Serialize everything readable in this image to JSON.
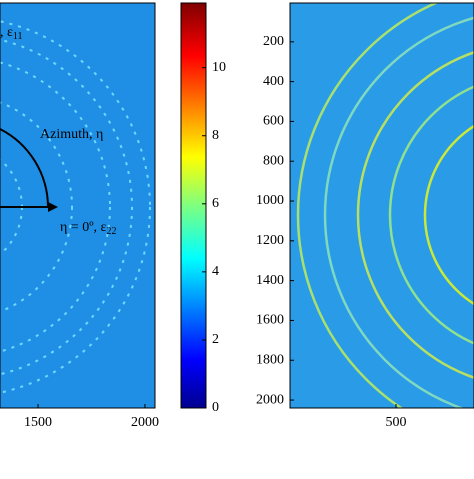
{
  "chart_data": [
    {
      "type": "image",
      "xlim": [
        1322,
        2047
      ],
      "xticks": [
        1500,
        2000
      ],
      "annotations": [
        {
          "text": "Azimuth, η"
        },
        {
          "text": "η = 0º, ε",
          "sub": "22"
        },
        {
          "text": ", ε",
          "sub": "11"
        }
      ]
    },
    {
      "type": "colorbar",
      "ylim": [
        0,
        11.9
      ],
      "yticks": [
        0,
        2,
        4,
        6,
        8,
        10
      ]
    },
    {
      "type": "image",
      "xlim": [
        0,
        868
      ],
      "xticks": [
        500
      ],
      "ylim": [
        5,
        2040
      ],
      "yticks": [
        200,
        400,
        600,
        800,
        1000,
        1200,
        1400,
        1600,
        1800,
        2000
      ]
    }
  ]
}
